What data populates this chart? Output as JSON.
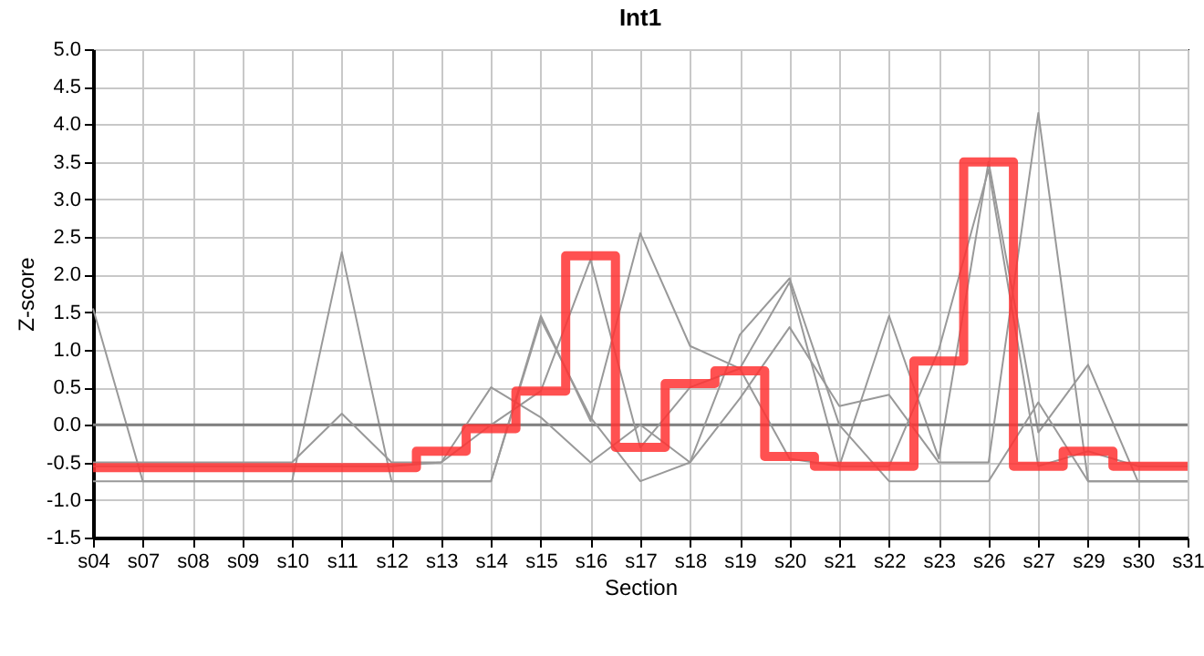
{
  "chart_data": {
    "type": "line",
    "title": "Int1",
    "xlabel": "Section",
    "ylabel": "Z-score",
    "categories": [
      "s04",
      "s07",
      "s08",
      "s09",
      "s10",
      "s11",
      "s12",
      "s13",
      "s14",
      "s15",
      "s16",
      "s17",
      "s18",
      "s19",
      "s20",
      "s21",
      "s22",
      "s23",
      "s26",
      "s27",
      "s29",
      "s30",
      "s31"
    ],
    "ylim": [
      -1.5,
      5.0
    ],
    "yticks": [
      {
        "value": -1.5,
        "label": "-1.5"
      },
      {
        "value": -1,
        "label": "-1.0"
      },
      {
        "value": -0.5,
        "label": "-0.5"
      },
      {
        "value": 0,
        "label": "0.0"
      },
      {
        "value": 0.5,
        "label": "0.5"
      },
      {
        "value": 1,
        "label": "1.0"
      },
      {
        "value": 1.5,
        "label": "1.5"
      },
      {
        "value": 2,
        "label": "2.0"
      },
      {
        "value": 2.5,
        "label": "2.5"
      },
      {
        "value": 3,
        "label": "3.0"
      },
      {
        "value": 3.5,
        "label": "3.5"
      },
      {
        "value": 4,
        "label": "4.0"
      },
      {
        "value": 4.5,
        "label": "4.5"
      },
      {
        "value": 5,
        "label": "5.0"
      }
    ],
    "grid": true,
    "line_style": "solid",
    "marker": "none",
    "ref_lines": [
      {
        "axis": "y",
        "value": 0,
        "color": "#808080"
      }
    ],
    "series": [
      {
        "color": "#999999",
        "values": [
          1.55,
          -0.75,
          -0.75,
          -0.75,
          -0.75,
          2.3,
          -0.75,
          -0.75,
          -0.75,
          1.45,
          0.05,
          2.55,
          1.05,
          0.75,
          1.9,
          -0.55,
          1.45,
          -0.45,
          3.5,
          -0.1,
          0.8,
          -0.75,
          -0.75
        ]
      },
      {
        "color": "#999999",
        "values": [
          -0.5,
          -0.5,
          -0.5,
          -0.5,
          -0.5,
          0.15,
          -0.5,
          -0.5,
          0.5,
          0.1,
          -0.5,
          0.0,
          -0.5,
          0.35,
          1.3,
          0.25,
          0.4,
          -0.5,
          -0.5,
          4.15,
          -0.75,
          -0.75,
          -0.75
        ]
      },
      {
        "color": "#999999",
        "values": [
          -0.75,
          -0.75,
          -0.75,
          -0.75,
          -0.75,
          -0.75,
          -0.75,
          -0.75,
          -0.75,
          1.4,
          0.1,
          -0.75,
          -0.5,
          1.2,
          1.95,
          0.0,
          -0.75,
          -0.75,
          -0.75,
          0.3,
          -0.75,
          -0.75,
          -0.75
        ]
      },
      {
        "color": "#999999",
        "values": [
          -0.55,
          -0.55,
          -0.55,
          -0.55,
          -0.55,
          -0.55,
          -0.55,
          -0.5,
          0.0,
          0.45,
          2.2,
          -0.3,
          0.5,
          0.75,
          -0.45,
          -0.55,
          -0.55,
          1.0,
          3.4,
          -0.55,
          -0.35,
          -0.55,
          -0.55
        ]
      },
      {
        "type": "step",
        "color": "#ff3333",
        "values": [
          -0.57,
          -0.57,
          -0.57,
          -0.57,
          -0.57,
          -0.57,
          -0.57,
          -0.35,
          -0.05,
          0.45,
          2.25,
          -0.3,
          0.55,
          0.72,
          -0.42,
          -0.55,
          -0.55,
          0.85,
          3.5,
          -0.55,
          -0.35,
          -0.55,
          -0.55
        ]
      }
    ]
  }
}
